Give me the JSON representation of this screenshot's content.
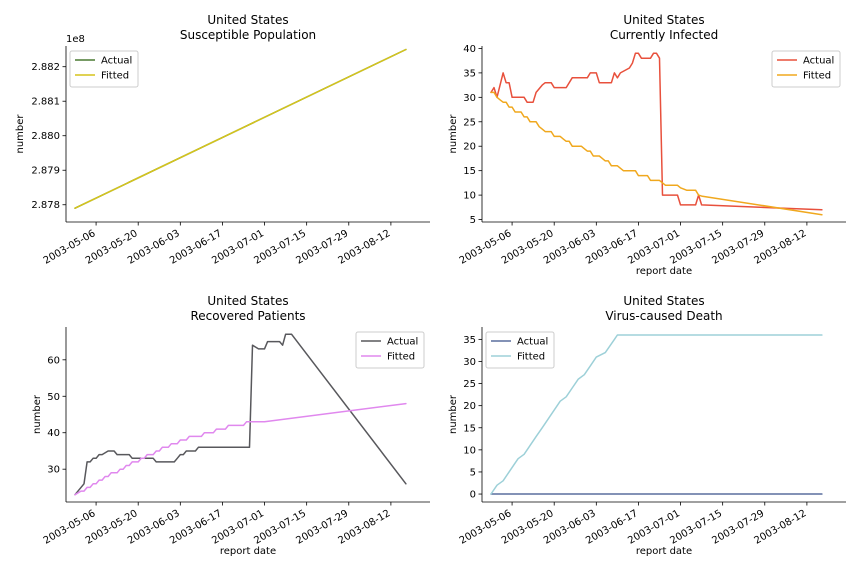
{
  "chart_data": [
    {
      "type": "line",
      "title": "United States\nSusceptible Population",
      "xlabel": "",
      "ylabel": "number",
      "offset_label": "1e8",
      "x_ticks": [
        "2003-05-06",
        "2003-05-20",
        "2003-06-03",
        "2003-06-17",
        "2003-07-01",
        "2003-07-15",
        "2003-07-29",
        "2003-08-12"
      ],
      "y_ticks": [
        "2.878",
        "2.879",
        "2.880",
        "2.881",
        "2.882"
      ],
      "y_tick_values": [
        2.878,
        2.879,
        2.88,
        2.881,
        2.882
      ],
      "xlim": [
        "2003-04-26",
        "2003-08-25"
      ],
      "ylim": [
        2.8775,
        2.8826
      ],
      "legend": "top-left",
      "series": [
        {
          "name": "Actual",
          "color": "#4a7a32",
          "points": [
            [
              "2003-04-29",
              2.8779
            ],
            [
              "2003-08-17",
              2.8825
            ]
          ]
        },
        {
          "name": "Fitted",
          "color": "#d6c41c",
          "points": [
            [
              "2003-04-29",
              2.8779
            ],
            [
              "2003-08-17",
              2.8825
            ]
          ]
        }
      ]
    },
    {
      "type": "line",
      "title": "United States\nCurrently Infected",
      "xlabel": "report date",
      "ylabel": "number",
      "x_ticks": [
        "2003-05-06",
        "2003-05-20",
        "2003-06-03",
        "2003-06-17",
        "2003-07-01",
        "2003-07-15",
        "2003-07-29",
        "2003-08-12"
      ],
      "y_ticks": [
        "5",
        "10",
        "15",
        "20",
        "25",
        "30",
        "35",
        "40"
      ],
      "y_tick_values": [
        5,
        10,
        15,
        20,
        25,
        30,
        35,
        40
      ],
      "xlim": [
        "2003-04-26",
        "2003-08-25"
      ],
      "ylim": [
        4.5,
        40.5
      ],
      "legend": "top-right",
      "series": [
        {
          "name": "Actual",
          "color": "#e8503c",
          "points": [
            [
              "2003-04-29",
              31
            ],
            [
              "2003-04-30",
              32
            ],
            [
              "2003-05-01",
              30
            ],
            [
              "2003-05-03",
              35
            ],
            [
              "2003-05-04",
              33
            ],
            [
              "2003-05-05",
              33
            ],
            [
              "2003-05-06",
              30
            ],
            [
              "2003-05-10",
              30
            ],
            [
              "2003-05-11",
              29
            ],
            [
              "2003-05-13",
              29
            ],
            [
              "2003-05-14",
              31
            ],
            [
              "2003-05-16",
              32.5
            ],
            [
              "2003-05-17",
              33
            ],
            [
              "2003-05-19",
              33
            ],
            [
              "2003-05-20",
              32
            ],
            [
              "2003-05-24",
              32
            ],
            [
              "2003-05-26",
              34
            ],
            [
              "2003-05-31",
              34
            ],
            [
              "2003-06-01",
              35
            ],
            [
              "2003-06-03",
              35
            ],
            [
              "2003-06-04",
              33
            ],
            [
              "2003-06-08",
              33
            ],
            [
              "2003-06-09",
              35
            ],
            [
              "2003-06-10",
              34
            ],
            [
              "2003-06-11",
              35
            ],
            [
              "2003-06-14",
              36
            ],
            [
              "2003-06-15",
              37
            ],
            [
              "2003-06-16",
              39
            ],
            [
              "2003-06-17",
              39
            ],
            [
              "2003-06-18",
              38
            ],
            [
              "2003-06-21",
              38
            ],
            [
              "2003-06-22",
              39
            ],
            [
              "2003-06-23",
              39
            ],
            [
              "2003-06-24",
              38
            ],
            [
              "2003-06-25",
              10
            ],
            [
              "2003-06-30",
              10
            ],
            [
              "2003-07-01",
              8
            ],
            [
              "2003-07-06",
              8
            ],
            [
              "2003-07-07",
              10
            ],
            [
              "2003-07-08",
              8
            ],
            [
              "2003-08-17",
              7
            ]
          ]
        },
        {
          "name": "Fitted",
          "color": "#f0a81e",
          "points": [
            [
              "2003-04-29",
              31
            ],
            [
              "2003-04-30",
              31
            ],
            [
              "2003-05-01",
              30
            ],
            [
              "2003-05-02",
              29.5
            ],
            [
              "2003-05-03",
              29
            ],
            [
              "2003-05-04",
              29
            ],
            [
              "2003-05-05",
              28
            ],
            [
              "2003-05-06",
              28
            ],
            [
              "2003-05-07",
              27
            ],
            [
              "2003-05-09",
              27
            ],
            [
              "2003-05-10",
              26
            ],
            [
              "2003-05-11",
              26
            ],
            [
              "2003-05-12",
              25
            ],
            [
              "2003-05-14",
              25
            ],
            [
              "2003-05-15",
              24
            ],
            [
              "2003-05-16",
              23.5
            ],
            [
              "2003-05-17",
              23
            ],
            [
              "2003-05-19",
              23
            ],
            [
              "2003-05-20",
              22
            ],
            [
              "2003-05-22",
              22
            ],
            [
              "2003-05-23",
              21.5
            ],
            [
              "2003-05-24",
              21
            ],
            [
              "2003-05-25",
              21
            ],
            [
              "2003-05-26",
              20
            ],
            [
              "2003-05-29",
              20
            ],
            [
              "2003-05-30",
              19.5
            ],
            [
              "2003-05-31",
              19
            ],
            [
              "2003-06-01",
              19
            ],
            [
              "2003-06-02",
              18
            ],
            [
              "2003-06-04",
              18
            ],
            [
              "2003-06-05",
              17.5
            ],
            [
              "2003-06-06",
              17
            ],
            [
              "2003-06-07",
              17
            ],
            [
              "2003-06-08",
              16
            ],
            [
              "2003-06-10",
              16
            ],
            [
              "2003-06-12",
              15
            ],
            [
              "2003-06-16",
              15
            ],
            [
              "2003-06-17",
              14
            ],
            [
              "2003-06-20",
              14
            ],
            [
              "2003-06-21",
              13
            ],
            [
              "2003-06-24",
              13
            ],
            [
              "2003-06-26",
              12
            ],
            [
              "2003-06-30",
              12
            ],
            [
              "2003-07-01",
              11.5
            ],
            [
              "2003-07-03",
              11
            ],
            [
              "2003-07-06",
              11
            ],
            [
              "2003-07-07",
              10
            ],
            [
              "2003-07-08",
              9.8
            ],
            [
              "2003-08-17",
              6
            ]
          ]
        }
      ]
    },
    {
      "type": "line",
      "title": "United States\nRecovered Patients",
      "xlabel": "report date",
      "ylabel": "number",
      "x_ticks": [
        "2003-05-06",
        "2003-05-20",
        "2003-06-03",
        "2003-06-17",
        "2003-07-01",
        "2003-07-15",
        "2003-07-29",
        "2003-08-12"
      ],
      "y_ticks": [
        "30",
        "40",
        "50",
        "60"
      ],
      "y_tick_values": [
        30,
        40,
        50,
        60
      ],
      "xlim": [
        "2003-04-26",
        "2003-08-25"
      ],
      "ylim": [
        21,
        69
      ],
      "legend": "top-right",
      "series": [
        {
          "name": "Actual",
          "color": "#58585c",
          "points": [
            [
              "2003-04-29",
              23
            ],
            [
              "2003-05-02",
              26
            ],
            [
              "2003-05-03",
              32
            ],
            [
              "2003-05-04",
              32
            ],
            [
              "2003-05-05",
              33
            ],
            [
              "2003-05-06",
              33
            ],
            [
              "2003-05-07",
              34
            ],
            [
              "2003-05-08",
              34
            ],
            [
              "2003-05-10",
              35
            ],
            [
              "2003-05-12",
              35
            ],
            [
              "2003-05-13",
              34
            ],
            [
              "2003-05-17",
              34
            ],
            [
              "2003-05-18",
              33
            ],
            [
              "2003-05-25",
              33
            ],
            [
              "2003-05-26",
              32
            ],
            [
              "2003-06-01",
              32
            ],
            [
              "2003-06-02",
              33
            ],
            [
              "2003-06-03",
              34
            ],
            [
              "2003-06-04",
              34
            ],
            [
              "2003-06-05",
              35
            ],
            [
              "2003-06-08",
              35
            ],
            [
              "2003-06-09",
              36
            ],
            [
              "2003-06-26",
              36
            ],
            [
              "2003-06-27",
              64
            ],
            [
              "2003-06-29",
              63
            ],
            [
              "2003-07-01",
              63
            ],
            [
              "2003-07-02",
              65
            ],
            [
              "2003-07-06",
              65
            ],
            [
              "2003-07-07",
              64
            ],
            [
              "2003-07-08",
              67
            ],
            [
              "2003-07-10",
              67
            ],
            [
              "2003-08-17",
              26
            ]
          ]
        },
        {
          "name": "Fitted",
          "color": "#e088ee",
          "points": [
            [
              "2003-04-29",
              23
            ],
            [
              "2003-05-01",
              24
            ],
            [
              "2003-05-02",
              24
            ],
            [
              "2003-05-03",
              25
            ],
            [
              "2003-05-04",
              25
            ],
            [
              "2003-05-05",
              26
            ],
            [
              "2003-05-06",
              26
            ],
            [
              "2003-05-07",
              27
            ],
            [
              "2003-05-08",
              27
            ],
            [
              "2003-05-09",
              28
            ],
            [
              "2003-05-10",
              28
            ],
            [
              "2003-05-11",
              29
            ],
            [
              "2003-05-13",
              29
            ],
            [
              "2003-05-14",
              30
            ],
            [
              "2003-05-15",
              30
            ],
            [
              "2003-05-16",
              31
            ],
            [
              "2003-05-17",
              31
            ],
            [
              "2003-05-18",
              32
            ],
            [
              "2003-05-20",
              32
            ],
            [
              "2003-05-21",
              33
            ],
            [
              "2003-05-22",
              33
            ],
            [
              "2003-05-23",
              34
            ],
            [
              "2003-05-25",
              34
            ],
            [
              "2003-05-26",
              35
            ],
            [
              "2003-05-27",
              35
            ],
            [
              "2003-05-28",
              36
            ],
            [
              "2003-05-30",
              36
            ],
            [
              "2003-05-31",
              37
            ],
            [
              "2003-06-02",
              37
            ],
            [
              "2003-06-03",
              38
            ],
            [
              "2003-06-05",
              38
            ],
            [
              "2003-06-06",
              39
            ],
            [
              "2003-06-10",
              39
            ],
            [
              "2003-06-11",
              40
            ],
            [
              "2003-06-14",
              40
            ],
            [
              "2003-06-15",
              41
            ],
            [
              "2003-06-18",
              41
            ],
            [
              "2003-06-19",
              42
            ],
            [
              "2003-06-24",
              42
            ],
            [
              "2003-06-25",
              43
            ],
            [
              "2003-07-01",
              43
            ],
            [
              "2003-08-17",
              48
            ]
          ]
        }
      ]
    },
    {
      "type": "line",
      "title": "United States\nVirus-caused Death",
      "xlabel": "report date",
      "ylabel": "number",
      "x_ticks": [
        "2003-05-06",
        "2003-05-20",
        "2003-06-03",
        "2003-06-17",
        "2003-07-01",
        "2003-07-15",
        "2003-07-29",
        "2003-08-12"
      ],
      "y_ticks": [
        "0",
        "5",
        "10",
        "15",
        "20",
        "25",
        "30",
        "35"
      ],
      "y_tick_values": [
        0,
        5,
        10,
        15,
        20,
        25,
        30,
        35
      ],
      "xlim": [
        "2003-04-26",
        "2003-08-25"
      ],
      "ylim": [
        -1.8,
        37.8
      ],
      "legend": "top-left",
      "series": [
        {
          "name": "Actual",
          "color": "#5a6e9e",
          "points": [
            [
              "2003-04-29",
              0
            ],
            [
              "2003-08-17",
              0
            ]
          ]
        },
        {
          "name": "Fitted",
          "color": "#9dd0d8",
          "points": [
            [
              "2003-04-29",
              0
            ],
            [
              "2003-05-01",
              2
            ],
            [
              "2003-05-03",
              3
            ],
            [
              "2003-05-05",
              5
            ],
            [
              "2003-05-07",
              7
            ],
            [
              "2003-05-08",
              8
            ],
            [
              "2003-05-10",
              9
            ],
            [
              "2003-05-12",
              11
            ],
            [
              "2003-05-14",
              13
            ],
            [
              "2003-05-16",
              15
            ],
            [
              "2003-05-18",
              17
            ],
            [
              "2003-05-20",
              19
            ],
            [
              "2003-05-22",
              21
            ],
            [
              "2003-05-24",
              22
            ],
            [
              "2003-05-26",
              24
            ],
            [
              "2003-05-28",
              26
            ],
            [
              "2003-05-30",
              27
            ],
            [
              "2003-06-01",
              29
            ],
            [
              "2003-06-03",
              31
            ],
            [
              "2003-06-06",
              32
            ],
            [
              "2003-06-09",
              35
            ],
            [
              "2003-06-10",
              36
            ],
            [
              "2003-08-17",
              36
            ]
          ]
        }
      ]
    }
  ]
}
